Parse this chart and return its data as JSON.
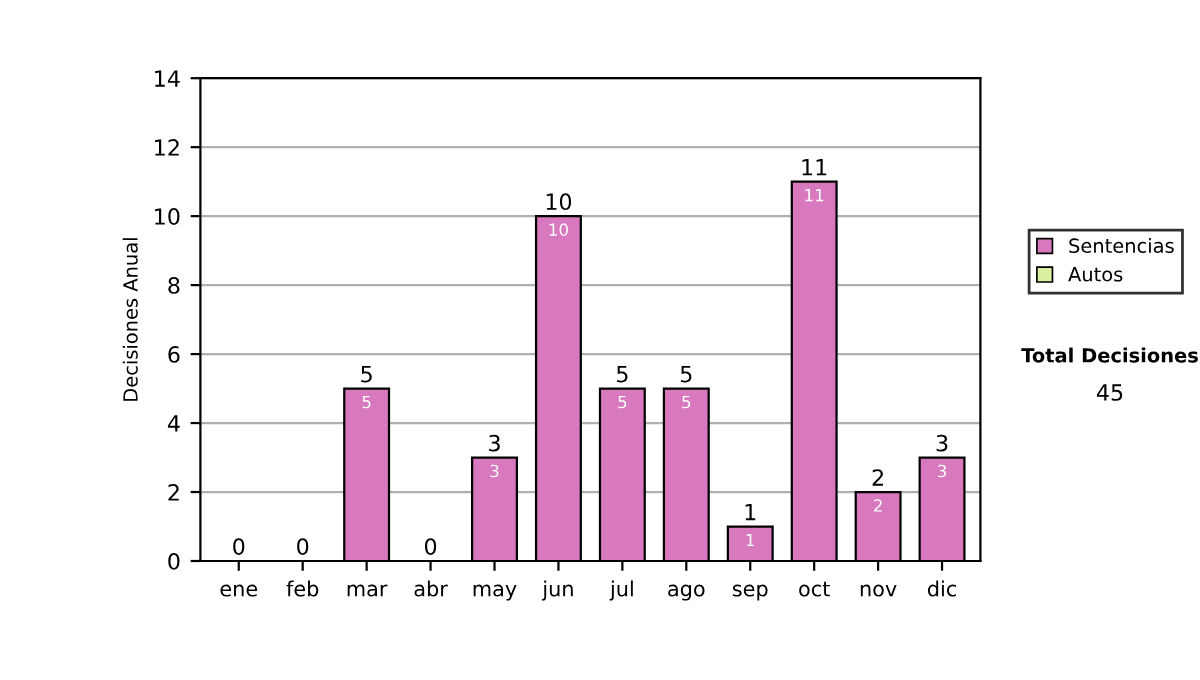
{
  "chart_data": {
    "type": "bar",
    "stacked": true,
    "ylabel": "Decisiones Anual",
    "categories": [
      "ene",
      "feb",
      "mar",
      "abr",
      "may",
      "jun",
      "jul",
      "ago",
      "sep",
      "oct",
      "nov",
      "dic"
    ],
    "series": [
      {
        "name": "Sentencias",
        "color": "#d878be",
        "values": [
          0,
          0,
          5,
          0,
          3,
          10,
          5,
          5,
          1,
          11,
          2,
          3
        ],
        "value_labels": [
          null,
          null,
          "5",
          null,
          "3",
          "10",
          "5",
          "5",
          "1",
          "11",
          "2",
          "3"
        ]
      },
      {
        "name": "Autos",
        "color": "#d8f0a0",
        "values": [
          0,
          0,
          0,
          0,
          0,
          0,
          0,
          0,
          0,
          0,
          0,
          0
        ]
      }
    ],
    "totals": [
      "0",
      "0",
      "5",
      "0",
      "3",
      "10",
      "5",
      "5",
      "1",
      "11",
      "2",
      "3"
    ],
    "ylim": [
      0,
      14
    ],
    "yticks": [
      0,
      2,
      4,
      6,
      8,
      10,
      12,
      14
    ],
    "grid": "y",
    "legend": "right",
    "annotations": [
      "Total Decisiones",
      "45"
    ]
  }
}
